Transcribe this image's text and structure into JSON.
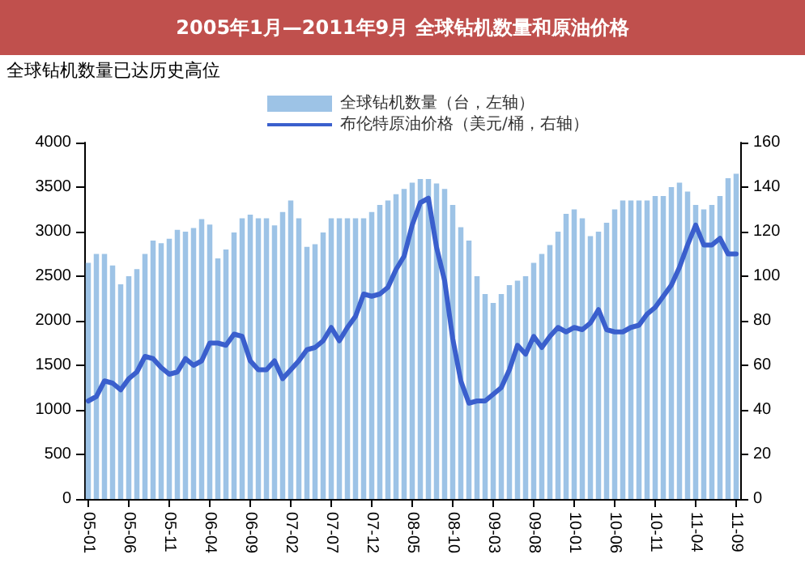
{
  "chart_data": {
    "type": "bar",
    "title": "2005年1月—2011年9月 全球钻机数量和原油价格",
    "subtitle": "全球钻机数量已达历史高位",
    "categories": [
      "05-01",
      null,
      null,
      null,
      null,
      "05-06",
      null,
      null,
      null,
      null,
      "05-11",
      null,
      null,
      null,
      null,
      "06-04",
      null,
      null,
      null,
      null,
      "06-09",
      null,
      null,
      null,
      null,
      "07-02",
      null,
      null,
      null,
      null,
      "07-07",
      null,
      null,
      null,
      null,
      "07-12",
      null,
      null,
      null,
      null,
      "08-05",
      null,
      null,
      null,
      null,
      "08-10",
      null,
      null,
      null,
      null,
      "09-03",
      null,
      null,
      null,
      null,
      "09-08",
      null,
      null,
      null,
      null,
      "10-01",
      null,
      null,
      null,
      null,
      "10-06",
      null,
      null,
      null,
      null,
      "10-11",
      null,
      null,
      null,
      null,
      "11-04",
      null,
      null,
      null,
      null,
      "11-09"
    ],
    "series": [
      {
        "name": "全球钻机数量（台，左轴）",
        "color": "#9dc3e6",
        "values": [
          2650,
          2750,
          2750,
          2620,
          2410,
          2500,
          2580,
          2750,
          2900,
          2870,
          2920,
          3020,
          3000,
          3040,
          3140,
          3080,
          2700,
          2800,
          2990,
          3150,
          3190,
          3150,
          3150,
          3070,
          3220,
          3350,
          3150,
          2830,
          2860,
          2990,
          3150,
          3150,
          3150,
          3150,
          3150,
          3220,
          3300,
          3350,
          3420,
          3480,
          3550,
          3590,
          3590,
          3540,
          3480,
          3300,
          3050,
          2900,
          2500,
          2300,
          2200,
          2300,
          2400,
          2450,
          2500,
          2650,
          2750,
          2850,
          3000,
          3200,
          3250,
          3150,
          2950,
          3000,
          3100,
          3250,
          3350,
          3350,
          3350,
          3350,
          3400,
          3400,
          3500,
          3550,
          3450,
          3300,
          3250,
          3300,
          3400,
          3600,
          3650
        ]
      },
      {
        "name": "布伦特原油价格（美元/桶，右轴）",
        "type": "line",
        "axis": "y2",
        "color": "#3a5fcd",
        "values": [
          44,
          46,
          53,
          52,
          49,
          54,
          57,
          64,
          63,
          59,
          56,
          57,
          63,
          60,
          62,
          70,
          70,
          69,
          74,
          73,
          62,
          58,
          58,
          62,
          54,
          58,
          62,
          67,
          68,
          71,
          77,
          71,
          77,
          82,
          92,
          91,
          92,
          95,
          103,
          109,
          123,
          133,
          135,
          113,
          98,
          72,
          53,
          43,
          44,
          44,
          47,
          50,
          58,
          69,
          65,
          73,
          68,
          73,
          77,
          75,
          77,
          76,
          79,
          85,
          76,
          75,
          75,
          77,
          78,
          83,
          86,
          91,
          96,
          104,
          114,
          123,
          114,
          114,
          117,
          110,
          110
        ]
      }
    ],
    "ylim": [
      0,
      4000
    ],
    "yticks": [
      0,
      500,
      1000,
      1500,
      2000,
      2500,
      3000,
      3500,
      4000
    ],
    "y2lim": [
      0,
      160
    ],
    "y2ticks": [
      0,
      20,
      40,
      60,
      80,
      100,
      120,
      140,
      160
    ],
    "grid": false,
    "legend": "top",
    "marker": "none",
    "line_style": "solid"
  }
}
